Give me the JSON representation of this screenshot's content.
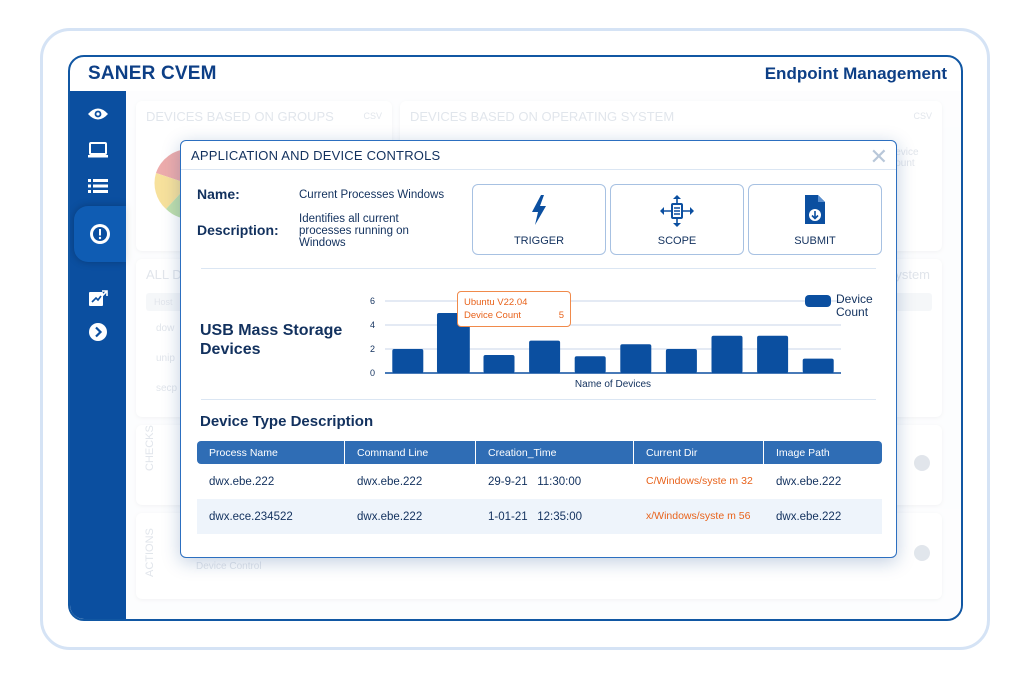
{
  "app": {
    "title": "SANER CVEM",
    "section": "Endpoint Management"
  },
  "sidebar": {
    "icons": [
      "eye-icon",
      "laptop-icon",
      "list-icon",
      "alert-icon",
      "report-icon",
      "arrow-circle-icon"
    ]
  },
  "background": {
    "groups_card_title": "DEVICES BASED ON GROUPS",
    "os_card_title": "DEVICES BASED ON OPERATING SYSTEM",
    "csv": "CSV",
    "all_label": "ALL D",
    "stem_label": "ystem",
    "host_label": "Host",
    "row1": "dow",
    "row2": "unip",
    "row3": "secp",
    "device_count_ghost": "Device Count",
    "checks_label": "CHECKS",
    "actions_label": "ACTIONS",
    "device_control_ghost": "Device Control"
  },
  "modal": {
    "title": "APPLICATION AND DEVICE CONTROLS",
    "name_label": "Name:",
    "name_value": "Current Processes Windows",
    "description_label": "Description:",
    "description_value": "Identifies all current processes running on Windows",
    "buttons": {
      "trigger": "TRIGGER",
      "scope": "SCOPE",
      "submit": "SUBMIT"
    }
  },
  "chart_title": "USB Mass Storage Devices",
  "chart_data": {
    "type": "bar",
    "xlabel": "Name of Devices",
    "ylabel": "",
    "yticks": [
      0,
      2,
      4,
      6
    ],
    "ylim": [
      0,
      6
    ],
    "series": [
      {
        "name": "Device Count",
        "values": [
          2,
          5,
          1.5,
          2.7,
          1.4,
          2.4,
          2.0,
          3.1,
          3.1,
          1.2
        ]
      }
    ],
    "highlight_index": 1,
    "tooltip": {
      "label": "Ubuntu V22.04",
      "metric": "Device Count",
      "value": "5"
    },
    "legend_position": "top-right",
    "bar_color": "#0b4fa0"
  },
  "table": {
    "title": "Device Type Description",
    "headers": [
      "Process Name",
      "Command Line",
      "Creation_Time",
      "Current Dir",
      "Image Path"
    ],
    "rows": [
      [
        "dwx.ebe.222",
        "dwx.ebe.222",
        "29-9-21   11:30:00",
        "C/Windows/syste m 32",
        "dwx.ebe.222"
      ],
      [
        "dwx.ece.234522",
        "dwx.ebe.222",
        "1-01-21   12:35:00",
        "x/Windows/syste m 56",
        "dwx.ebe.222"
      ]
    ]
  },
  "colors": {
    "brand": "#0b4fa0",
    "accent": "#e8631c",
    "text": "#12315e"
  }
}
